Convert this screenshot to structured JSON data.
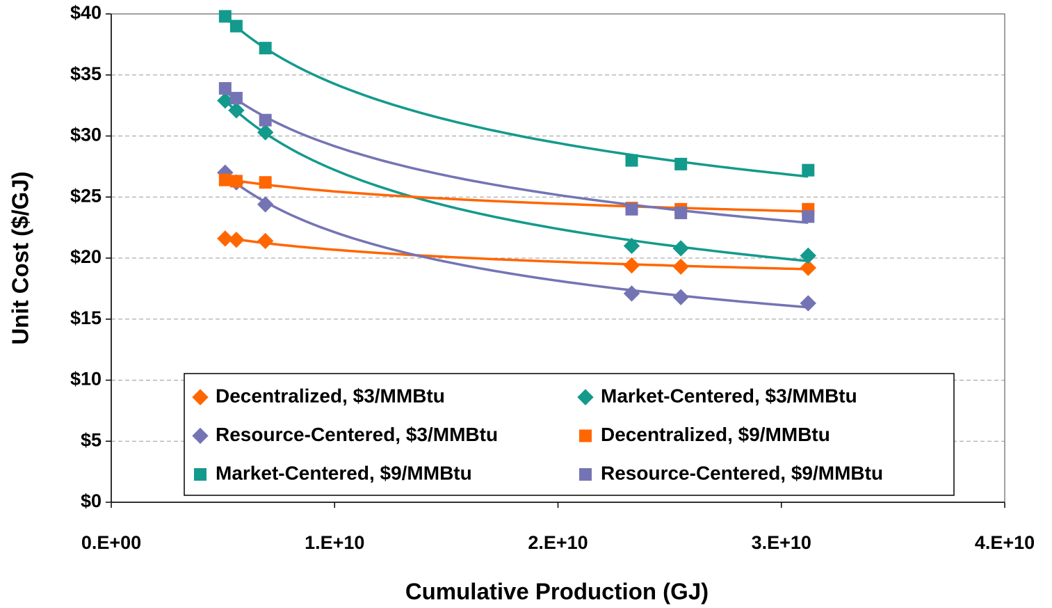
{
  "chart_data": {
    "type": "scatter",
    "x_label": "Cumulative Production (GJ)",
    "y_label": "Unit Cost ($/GJ)",
    "xlim": [
      0,
      40000000000
    ],
    "ylim": [
      0,
      40
    ],
    "xticks": [
      {
        "value": 0,
        "label": "0.E+00"
      },
      {
        "value": 10000000000,
        "label": "1.E+10"
      },
      {
        "value": 20000000000,
        "label": "2.E+10"
      },
      {
        "value": 30000000000,
        "label": "3.E+10"
      },
      {
        "value": 40000000000,
        "label": "4.E+10"
      }
    ],
    "yticks": [
      {
        "value": 0,
        "label": "$0"
      },
      {
        "value": 5,
        "label": "$5"
      },
      {
        "value": 10,
        "label": "$10"
      },
      {
        "value": 15,
        "label": "$15"
      },
      {
        "value": 20,
        "label": "$20"
      },
      {
        "value": 25,
        "label": "$25"
      },
      {
        "value": 30,
        "label": "$30"
      },
      {
        "value": 35,
        "label": "$35"
      },
      {
        "value": 40,
        "label": "$40"
      }
    ],
    "grid": true,
    "trendline": "power",
    "x": [
      5100000000,
      5600000000,
      6900000000,
      23300000000,
      25500000000,
      31200000000
    ],
    "series": [
      {
        "name": "Decentralized, $3/MMBtu",
        "color": "#ff6600",
        "marker": "diamond",
        "values": [
          21.6,
          21.5,
          21.4,
          19.4,
          19.3,
          19.2
        ]
      },
      {
        "name": "Market-Centered, $3/MMBtu",
        "color": "#139a8c",
        "marker": "diamond",
        "values": [
          32.9,
          32.1,
          30.3,
          21.0,
          20.8,
          20.2
        ]
      },
      {
        "name": "Resource-Centered, $3/MMBtu",
        "color": "#7474b4",
        "marker": "diamond",
        "values": [
          27.0,
          26.2,
          24.4,
          17.1,
          16.8,
          16.3
        ]
      },
      {
        "name": "Decentralized, $9/MMBtu",
        "color": "#ff6600",
        "marker": "square",
        "values": [
          26.4,
          26.3,
          26.2,
          24.1,
          24.0,
          24.0
        ]
      },
      {
        "name": "Market-Centered, $9/MMBtu",
        "color": "#139a8c",
        "marker": "square",
        "values": [
          39.8,
          39.0,
          37.2,
          28.0,
          27.7,
          27.2
        ]
      },
      {
        "name": "Resource-Centered, $9/MMBtu",
        "color": "#7474b4",
        "marker": "square",
        "values": [
          33.9,
          33.1,
          31.3,
          24.0,
          23.7,
          23.4
        ]
      }
    ]
  }
}
